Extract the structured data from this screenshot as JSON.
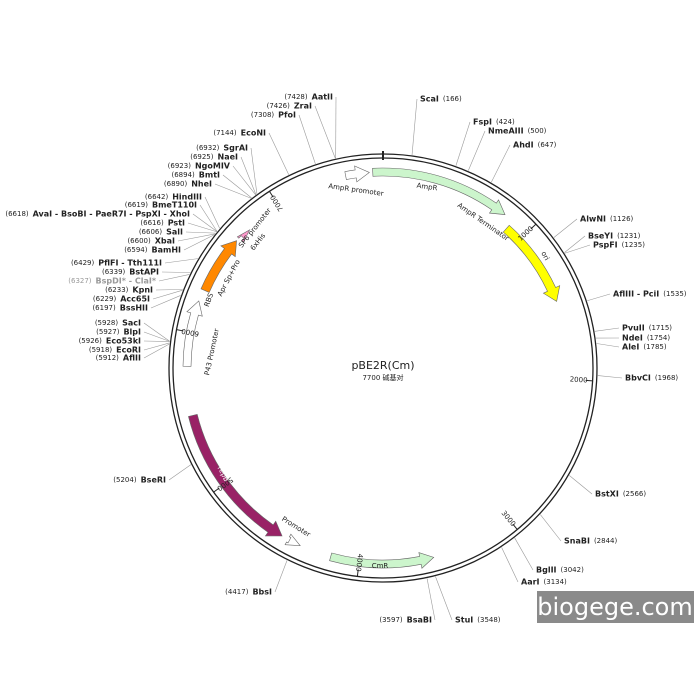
{
  "title": "pBE2R(Cm)",
  "length": {
    "value": 7700,
    "label": "7700 碱基对"
  },
  "ticks": [
    1000,
    2000,
    3000,
    4000,
    5000,
    6000,
    7000
  ],
  "sites": [
    {
      "name": "ScaI",
      "pos": {
        "value": 166,
        "label": "(166)"
      }
    },
    {
      "name": "FspI",
      "pos": {
        "value": 424,
        "label": "(424)"
      }
    },
    {
      "name": "NmeAIII",
      "pos": {
        "value": 500,
        "label": "(500)"
      }
    },
    {
      "name": "AhdI",
      "pos": {
        "value": 647,
        "label": "(647)"
      }
    },
    {
      "name": "AlwNI",
      "pos": {
        "value": 1126,
        "label": "(1126)"
      }
    },
    {
      "name": "BseYI",
      "pos": {
        "value": 1231,
        "label": "(1231)"
      }
    },
    {
      "name": "PspFI",
      "pos": {
        "value": 1235,
        "label": "(1235)"
      }
    },
    {
      "name": "AflIII - PciI",
      "pos": {
        "value": 1535,
        "label": "(1535)"
      }
    },
    {
      "name": "PvuII",
      "pos": {
        "value": 1715,
        "label": "(1715)"
      }
    },
    {
      "name": "NdeI",
      "pos": {
        "value": 1754,
        "label": "(1754)"
      }
    },
    {
      "name": "AleI",
      "pos": {
        "value": 1785,
        "label": "(1785)"
      }
    },
    {
      "name": "BbvCI",
      "pos": {
        "value": 1968,
        "label": "(1968)"
      }
    },
    {
      "name": "BstXI",
      "pos": {
        "value": 2566,
        "label": "(2566)"
      }
    },
    {
      "name": "SnaBI",
      "pos": {
        "value": 2844,
        "label": "(2844)"
      }
    },
    {
      "name": "BglII",
      "pos": {
        "value": 3042,
        "label": "(3042)"
      }
    },
    {
      "name": "AarI",
      "pos": {
        "value": 3134,
        "label": "(3134)"
      }
    },
    {
      "name": "StuI",
      "pos": {
        "value": 3548,
        "label": "(3548)"
      }
    },
    {
      "name": "BsaBI",
      "pos": {
        "value": 3597,
        "label": "(3597)"
      }
    },
    {
      "name": "BbsI",
      "pos": {
        "value": 4417,
        "label": "(4417)"
      }
    },
    {
      "name": "BseRI",
      "pos": {
        "value": 5204,
        "label": "(5204)"
      }
    },
    {
      "name": "AflII",
      "pos": {
        "value": 5912,
        "label": "(5912)"
      }
    },
    {
      "name": "EcoRI",
      "pos": {
        "value": 5918,
        "label": "(5918)"
      }
    },
    {
      "name": "Eco53kI",
      "pos": {
        "value": 5926,
        "label": "(5926)"
      }
    },
    {
      "name": "BlpI",
      "pos": {
        "value": 5927,
        "label": "(5927)"
      }
    },
    {
      "name": "SacI",
      "pos": {
        "value": 5928,
        "label": "(5928)"
      }
    },
    {
      "name": "BssHII",
      "pos": {
        "value": 6197,
        "label": "(6197)"
      }
    },
    {
      "name": "Acc65I",
      "pos": {
        "value": 6229,
        "label": "(6229)"
      }
    },
    {
      "name": "KpnI",
      "pos": {
        "value": 6233,
        "label": "(6233)"
      }
    },
    {
      "name": "BspDI* - ClaI*",
      "pos": {
        "value": 6327,
        "label": "(6327)"
      },
      "color": "#999999"
    },
    {
      "name": "BstAPI",
      "pos": {
        "value": 6339,
        "label": "(6339)"
      }
    },
    {
      "name": "PflFI - Tth111I",
      "pos": {
        "value": 6429,
        "label": "(6429)"
      }
    },
    {
      "name": "BamHI",
      "pos": {
        "value": 6594,
        "label": "(6594)"
      }
    },
    {
      "name": "XbaI",
      "pos": {
        "value": 6600,
        "label": "(6600)"
      }
    },
    {
      "name": "SalI",
      "pos": {
        "value": 6606,
        "label": "(6606)"
      }
    },
    {
      "name": "PstI",
      "pos": {
        "value": 6616,
        "label": "(6616)"
      }
    },
    {
      "name": "AvaI - BsoBI - PaeR7I - PspXI - XhoI",
      "pos": {
        "value": 6618,
        "label": "(6618)"
      }
    },
    {
      "name": "BmeT110I",
      "pos": {
        "value": 6619,
        "label": "(6619)"
      }
    },
    {
      "name": "HindIII",
      "pos": {
        "value": 6642,
        "label": "(6642)"
      }
    },
    {
      "name": "NheI",
      "pos": {
        "value": 6890,
        "label": "(6890)"
      }
    },
    {
      "name": "BmtI",
      "pos": {
        "value": 6894,
        "label": "(6894)"
      }
    },
    {
      "name": "NgoMIV",
      "pos": {
        "value": 6923,
        "label": "(6923)"
      }
    },
    {
      "name": "NaeI",
      "pos": {
        "value": 6925,
        "label": "(6925)"
      }
    },
    {
      "name": "SgrAI",
      "pos": {
        "value": 6932,
        "label": "(6932)"
      }
    },
    {
      "name": "EcoNI",
      "pos": {
        "value": 7144,
        "label": "(7144)"
      }
    },
    {
      "name": "PfoI",
      "pos": {
        "value": 7308,
        "label": "(7308)"
      }
    },
    {
      "name": "ZraI",
      "pos": {
        "value": 7426,
        "label": "(7426)"
      }
    },
    {
      "name": "AatII",
      "pos": {
        "value": 7428,
        "label": "(7428)"
      }
    }
  ],
  "features": [
    {
      "label": "AmpR promoter"
    },
    {
      "label": "AmpR"
    },
    {
      "label": "AmpR Terminator"
    },
    {
      "label": "ori"
    },
    {
      "label": "CmR"
    },
    {
      "label": "repB"
    },
    {
      "label": "Promoter"
    },
    {
      "label": "P43 Promoter"
    },
    {
      "label": "RBS"
    },
    {
      "label": "Apr Sp+Pro"
    },
    {
      "label": "6xHis"
    },
    {
      "label": "SP6 promoter"
    }
  ],
  "watermark": "biogege.com"
}
